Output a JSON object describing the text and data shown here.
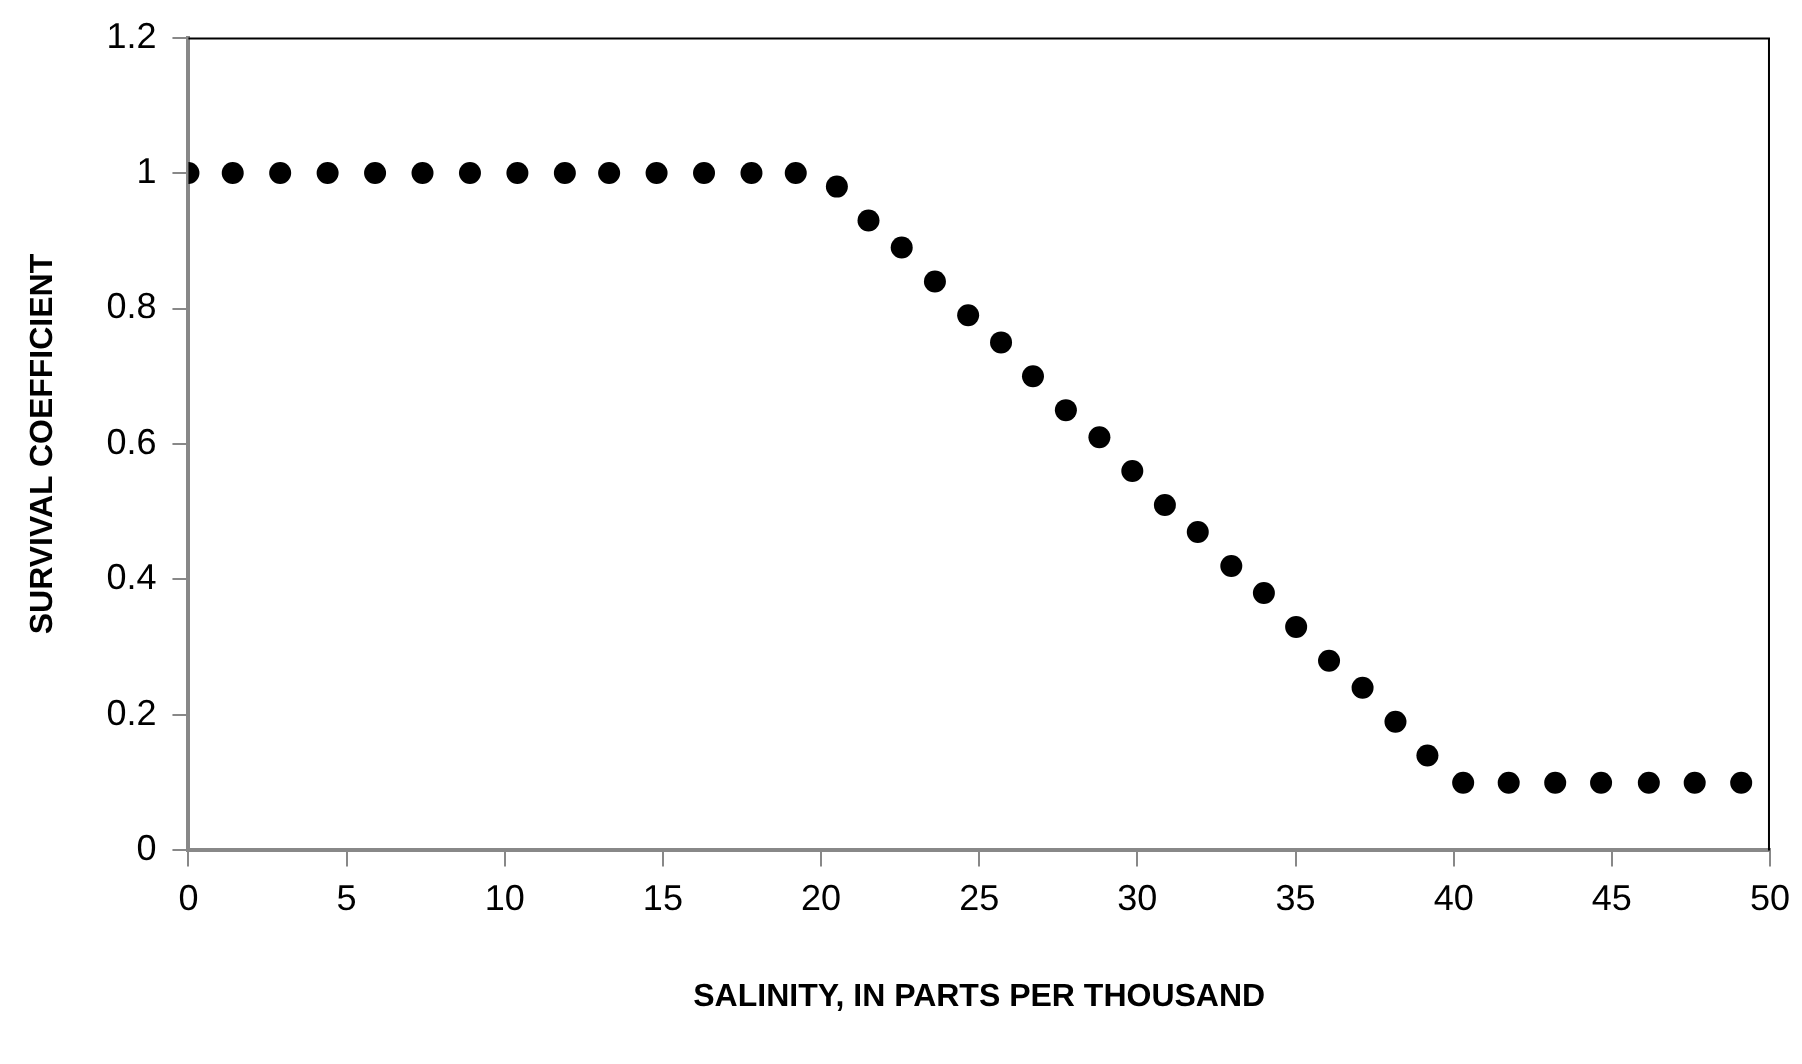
{
  "chart_data": {
    "type": "scatter",
    "xlabel": "SALINITY, IN PARTS PER THOUSAND",
    "ylabel": "SURVIVAL COEFFICIENT",
    "x": [
      0,
      1.4,
      2.9,
      4.4,
      5.9,
      7.4,
      8.9,
      10.4,
      11.9,
      13.3,
      14.8,
      16.3,
      17.8,
      19.2,
      20.5,
      21.5,
      22.55,
      23.6,
      24.65,
      25.69,
      26.7,
      27.74,
      28.8,
      29.84,
      30.87,
      31.91,
      32.97,
      34.0,
      35.02,
      36.06,
      37.12,
      38.16,
      39.17,
      40.3,
      41.74,
      43.21,
      44.66,
      46.17,
      47.62,
      49.09
    ],
    "series": [
      {
        "color": "#000000",
        "values": [
          1,
          1,
          1,
          1,
          1,
          1,
          1,
          1,
          1,
          1,
          1,
          1,
          1,
          1,
          0.98,
          0.93,
          0.89,
          0.84,
          0.79,
          0.75,
          0.7,
          0.65,
          0.61,
          0.56,
          0.51,
          0.47,
          0.42,
          0.38,
          0.33,
          0.28,
          0.24,
          0.19,
          0.14,
          0.1,
          0.1,
          0.1,
          0.1,
          0.1,
          0.1,
          0.1
        ]
      }
    ],
    "xlim": [
      0,
      50
    ],
    "xticks": [
      0,
      5,
      10,
      15,
      20,
      25,
      30,
      35,
      40,
      45,
      50
    ],
    "ylim": [
      0,
      1.2
    ],
    "yticks": [
      0,
      0.2,
      0.4,
      0.6,
      0.8,
      1,
      1.2
    ],
    "grid": false,
    "legend": false,
    "marker": "circle"
  }
}
